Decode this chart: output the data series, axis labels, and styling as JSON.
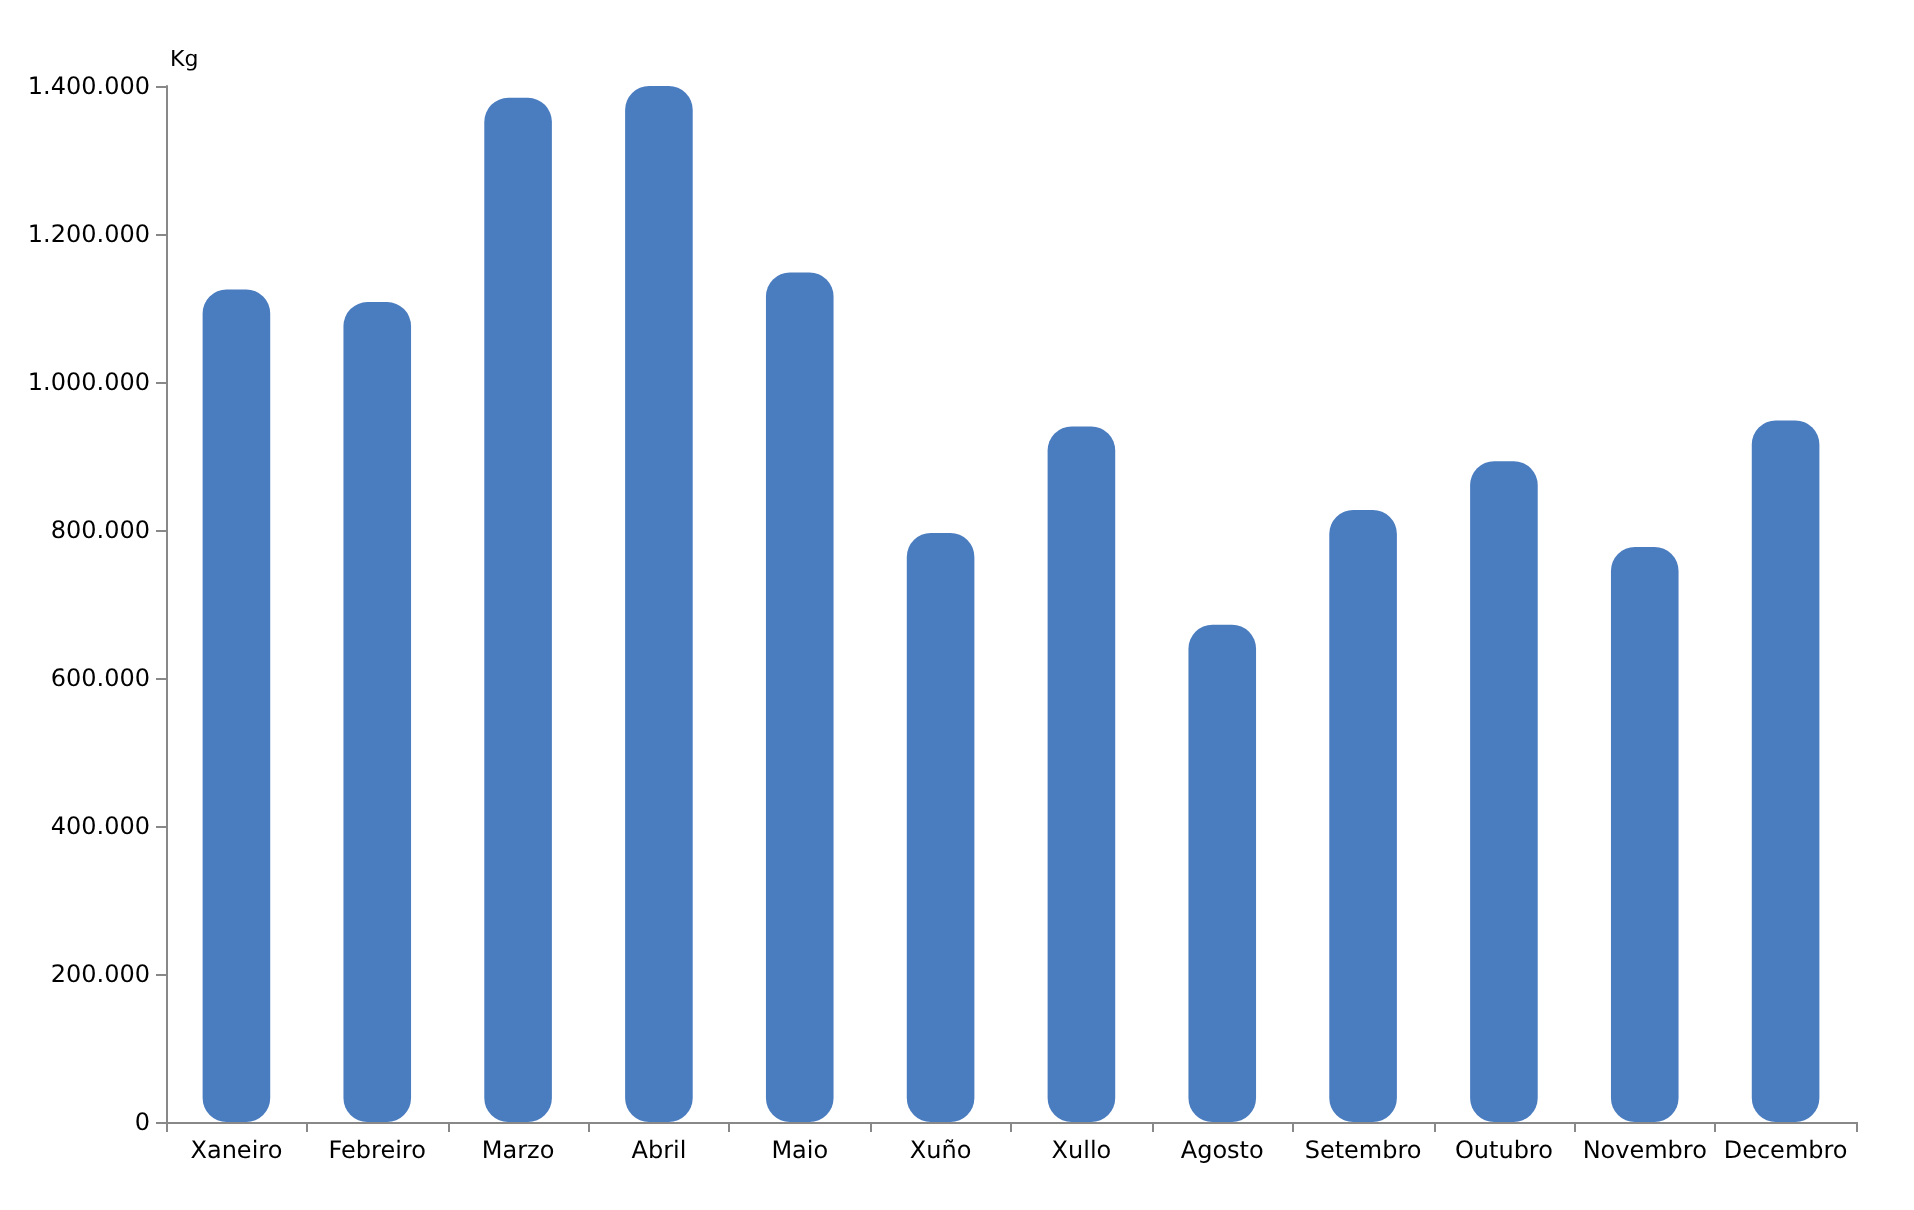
{
  "chart_data": {
    "type": "bar",
    "ylabel": "Kg",
    "categories": [
      "Xaneiro",
      "Febreiro",
      "Marzo",
      "Abril",
      "Maio",
      "Xuño",
      "Xullo",
      "Agosto",
      "Setembro",
      "Outubro",
      "Novembro",
      "Decembro"
    ],
    "values": [
      1125000,
      1108000,
      1384000,
      1400000,
      1148000,
      796000,
      940000,
      672000,
      827000,
      893000,
      777000,
      948000
    ],
    "color": "#4a7cc0",
    "ylim": [
      0,
      1400000
    ],
    "yticks": [
      {
        "value": 0,
        "label": "0"
      },
      {
        "value": 200000,
        "label": "200.000"
      },
      {
        "value": 400000,
        "label": "400.000"
      },
      {
        "value": 600000,
        "label": "600.000"
      },
      {
        "value": 800000,
        "label": "800.000"
      },
      {
        "value": 1000000,
        "label": "1.000.000"
      },
      {
        "value": 1200000,
        "label": "1.200.000"
      },
      {
        "value": 1400000,
        "label": "1.400.000"
      }
    ],
    "grid": false
  }
}
